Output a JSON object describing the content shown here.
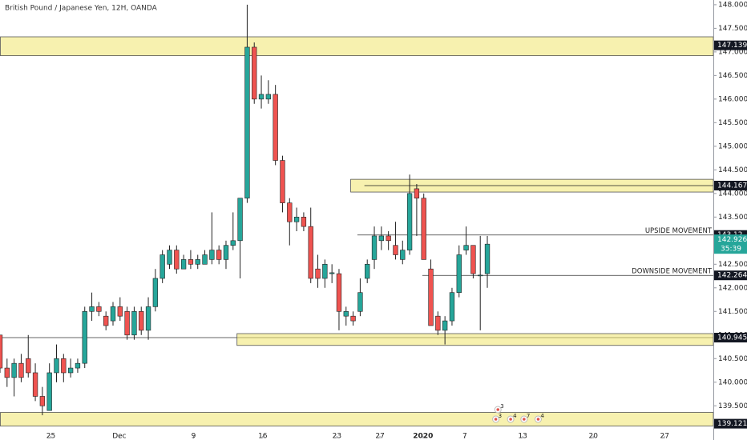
{
  "chart_data": {
    "type": "candlestick",
    "title": "British Pound / Japanese Yen, 12H, OANDA",
    "xlim": [
      0,
      101
    ],
    "ylim": [
      138.86,
      148.1
    ],
    "xticks": [
      {
        "value": 7.2,
        "label": "25"
      },
      {
        "value": 16.9,
        "label": "Dec"
      },
      {
        "value": 27.4,
        "label": "9"
      },
      {
        "value": 37.2,
        "label": "16"
      },
      {
        "value": 47.7,
        "label": "23"
      },
      {
        "value": 53.8,
        "label": "27"
      },
      {
        "value": 59.9,
        "label": "2020"
      },
      {
        "value": 65.8,
        "label": "7"
      },
      {
        "value": 74.0,
        "label": "13"
      },
      {
        "value": 84.0,
        "label": "20"
      },
      {
        "value": 94.1,
        "label": "27"
      }
    ],
    "yticks": [
      {
        "value": 139.5,
        "label": "139.500"
      },
      {
        "value": 140,
        "label": "140.000"
      },
      {
        "value": 140.5,
        "label": "140.500"
      },
      {
        "value": 141,
        "label": "141.000"
      },
      {
        "value": 141.5,
        "label": "141.500"
      },
      {
        "value": 142,
        "label": "142.000"
      },
      {
        "value": 142.5,
        "label": "142.500"
      },
      {
        "value": 143,
        "label": "143.000"
      },
      {
        "value": 143.5,
        "label": "143.500"
      },
      {
        "value": 144,
        "label": "144.000"
      },
      {
        "value": 144.5,
        "label": "144.500"
      },
      {
        "value": 145,
        "label": "145.000"
      },
      {
        "value": 145.5,
        "label": "145.500"
      },
      {
        "value": 146,
        "label": "146.000"
      },
      {
        "value": 146.5,
        "label": "146.500"
      },
      {
        "value": 147,
        "label": "147.000"
      },
      {
        "value": 147.5,
        "label": "147.500"
      },
      {
        "value": 148,
        "label": "148.000"
      }
    ],
    "up_color": "#26a69a",
    "down_color": "#ef5350",
    "x": [
      0,
      1,
      2,
      3,
      4,
      5,
      6,
      7,
      8,
      9,
      10,
      11,
      12,
      13,
      14,
      15,
      16,
      17,
      18,
      19,
      20,
      21,
      22,
      23,
      24,
      25,
      26,
      27,
      28,
      29,
      30,
      31,
      32,
      33,
      34,
      35,
      36,
      37,
      38,
      39,
      40,
      41,
      42,
      43,
      44,
      45,
      46,
      47,
      48,
      49,
      50,
      51,
      52,
      53,
      54,
      55,
      56,
      57,
      58,
      59,
      60,
      61,
      62,
      63,
      64,
      65,
      66,
      67,
      68,
      69
    ],
    "open": [
      141.0,
      140.3,
      140.1,
      140.4,
      140.5,
      140.2,
      139.7,
      139.4,
      140.2,
      140.5,
      140.2,
      140.3,
      140.4,
      141.5,
      141.6,
      141.4,
      141.3,
      141.6,
      141.5,
      141.0,
      141.5,
      141.1,
      141.6,
      142.2,
      142.5,
      142.8,
      142.4,
      142.6,
      142.5,
      142.5,
      142.6,
      142.8,
      142.6,
      142.9,
      143.0,
      143.9,
      147.1,
      146.0,
      146.0,
      146.1,
      144.7,
      143.8,
      143.4,
      143.5,
      143.3,
      142.4,
      142.2,
      142.3,
      142.3,
      141.4,
      141.4,
      141.5,
      142.2,
      142.6,
      143.0,
      143.1,
      142.9,
      142.6,
      142.8,
      144.1,
      143.9,
      142.4,
      141.4,
      141.1,
      141.3,
      141.9,
      142.8,
      142.9,
      142.26,
      142.3
    ],
    "high": [
      141.0,
      140.5,
      140.5,
      140.6,
      141.0,
      140.4,
      139.9,
      140.4,
      140.8,
      140.6,
      140.5,
      140.5,
      141.6,
      141.9,
      141.7,
      141.5,
      141.7,
      141.8,
      141.6,
      141.6,
      141.6,
      141.8,
      142.4,
      142.8,
      142.9,
      142.9,
      142.7,
      142.8,
      142.7,
      142.8,
      143.6,
      142.9,
      143.0,
      143.6,
      143.9,
      148.0,
      147.2,
      146.5,
      146.4,
      146.3,
      144.8,
      143.9,
      143.7,
      143.6,
      143.7,
      142.7,
      142.6,
      142.5,
      142.4,
      141.6,
      141.5,
      142.2,
      142.6,
      143.3,
      143.3,
      143.2,
      143.4,
      143.0,
      144.4,
      144.2,
      144.0,
      142.6,
      141.5,
      141.4,
      142.0,
      142.9,
      143.3,
      142.9,
      143.1,
      143.1
    ],
    "low": [
      140.2,
      139.9,
      139.7,
      140.0,
      140.1,
      139.6,
      139.3,
      139.4,
      140.0,
      140.0,
      140.1,
      140.2,
      140.3,
      141.3,
      141.4,
      141.1,
      141.2,
      141.3,
      140.9,
      140.9,
      141.0,
      140.9,
      141.5,
      142.1,
      142.4,
      142.3,
      142.4,
      142.4,
      142.4,
      142.5,
      142.5,
      142.5,
      142.4,
      142.8,
      142.2,
      143.8,
      145.9,
      145.8,
      145.9,
      144.6,
      143.6,
      142.9,
      143.2,
      143.2,
      142.1,
      142.0,
      142.0,
      142.1,
      141.1,
      141.2,
      141.2,
      141.4,
      142.1,
      142.4,
      142.8,
      142.8,
      142.6,
      142.5,
      142.7,
      143.1,
      142.6,
      141.2,
      141.0,
      140.8,
      141.2,
      141.8,
      142.7,
      142.2,
      141.1,
      142.0
    ],
    "close": [
      140.3,
      140.1,
      140.4,
      140.1,
      140.2,
      139.7,
      139.5,
      140.2,
      140.5,
      140.2,
      140.3,
      140.4,
      141.5,
      141.6,
      141.5,
      141.2,
      141.6,
      141.4,
      141.0,
      141.5,
      141.1,
      141.6,
      142.2,
      142.7,
      142.8,
      142.4,
      142.6,
      142.5,
      142.6,
      142.7,
      142.8,
      142.6,
      142.9,
      143.0,
      143.9,
      147.1,
      146.0,
      146.1,
      146.1,
      144.7,
      143.8,
      143.4,
      143.5,
      143.3,
      142.2,
      142.2,
      142.5,
      142.32,
      141.5,
      141.5,
      141.3,
      141.9,
      142.5,
      143.1,
      143.1,
      143.0,
      142.7,
      142.8,
      144.0,
      143.9,
      142.6,
      141.2,
      141.1,
      141.3,
      141.9,
      142.7,
      142.9,
      142.3,
      142.27,
      142.926
    ],
    "zones": [
      {
        "low": 146.92,
        "high": 147.32,
        "x0": 0,
        "level": 147.139
      },
      {
        "low": 144.03,
        "high": 144.3,
        "x0": 49.6,
        "level": 144.167,
        "line_x0": 51.6
      },
      {
        "low": 140.78,
        "high": 141.03,
        "x0": 33.5,
        "level": 140.945,
        "line_x0": 0
      },
      {
        "low": 139.07,
        "high": 139.36,
        "x0": 0,
        "level": 139.121
      }
    ],
    "lines": [
      {
        "price": 143.12,
        "x0": 50.6,
        "text": "UPSIDE MOVEMENT"
      },
      {
        "price": 142.264,
        "x0": 59.8,
        "text": "DOWNSIDE MOVEMENT"
      }
    ],
    "last_price": 142.926,
    "countdown": "35:39",
    "events": [
      {
        "x": 70.5,
        "row": 0,
        "count": "3"
      },
      {
        "x": 70.2,
        "row": 1,
        "count": "3"
      },
      {
        "x": 72.3,
        "row": 1,
        "count": "4"
      },
      {
        "x": 74.2,
        "row": 1,
        "count": "7"
      },
      {
        "x": 76.2,
        "row": 1,
        "count": "4"
      }
    ]
  }
}
